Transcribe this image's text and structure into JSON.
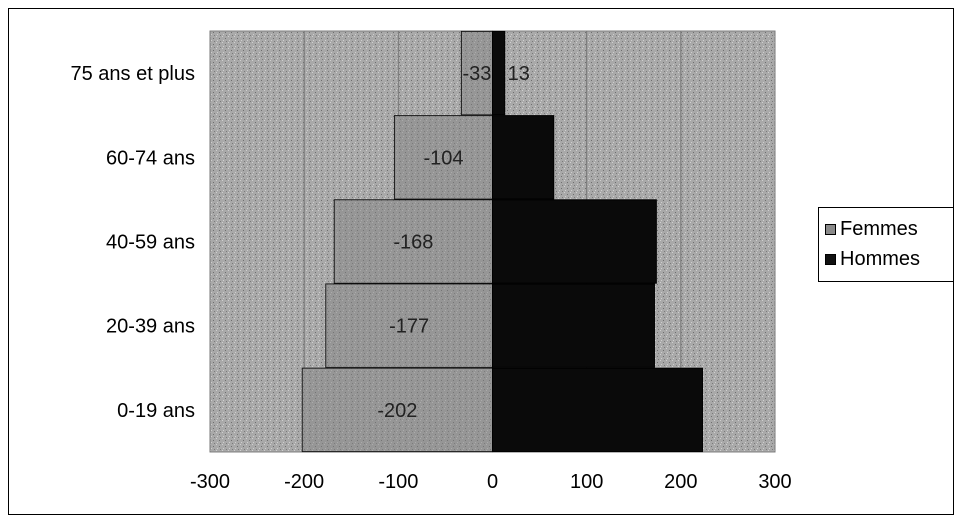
{
  "chart_data": {
    "type": "bar",
    "orientation": "horizontal",
    "stacked": "population-pyramid",
    "categories": [
      "0-19 ans",
      "20-39 ans",
      "40-59 ans",
      "60-74 ans",
      "75 ans et plus"
    ],
    "series": [
      {
        "name": "Femmes",
        "values": [
          -202,
          -177,
          -168,
          -104,
          -33
        ],
        "color": "#8a8a8a",
        "labels": [
          "-202",
          "-177",
          "-168",
          "-104",
          "-33"
        ]
      },
      {
        "name": "Hommes",
        "values": [
          223,
          172,
          174,
          65,
          13
        ],
        "color": "#000000",
        "labels": [
          "",
          "",
          "",
          "",
          "13"
        ]
      }
    ],
    "xlim": [
      -300,
      300
    ],
    "xticks": [
      "-300",
      "-200",
      "-100",
      "0",
      "100",
      "200",
      "300"
    ],
    "grid": true,
    "plot_background": "#a9a9a9",
    "legend_position": "right"
  }
}
